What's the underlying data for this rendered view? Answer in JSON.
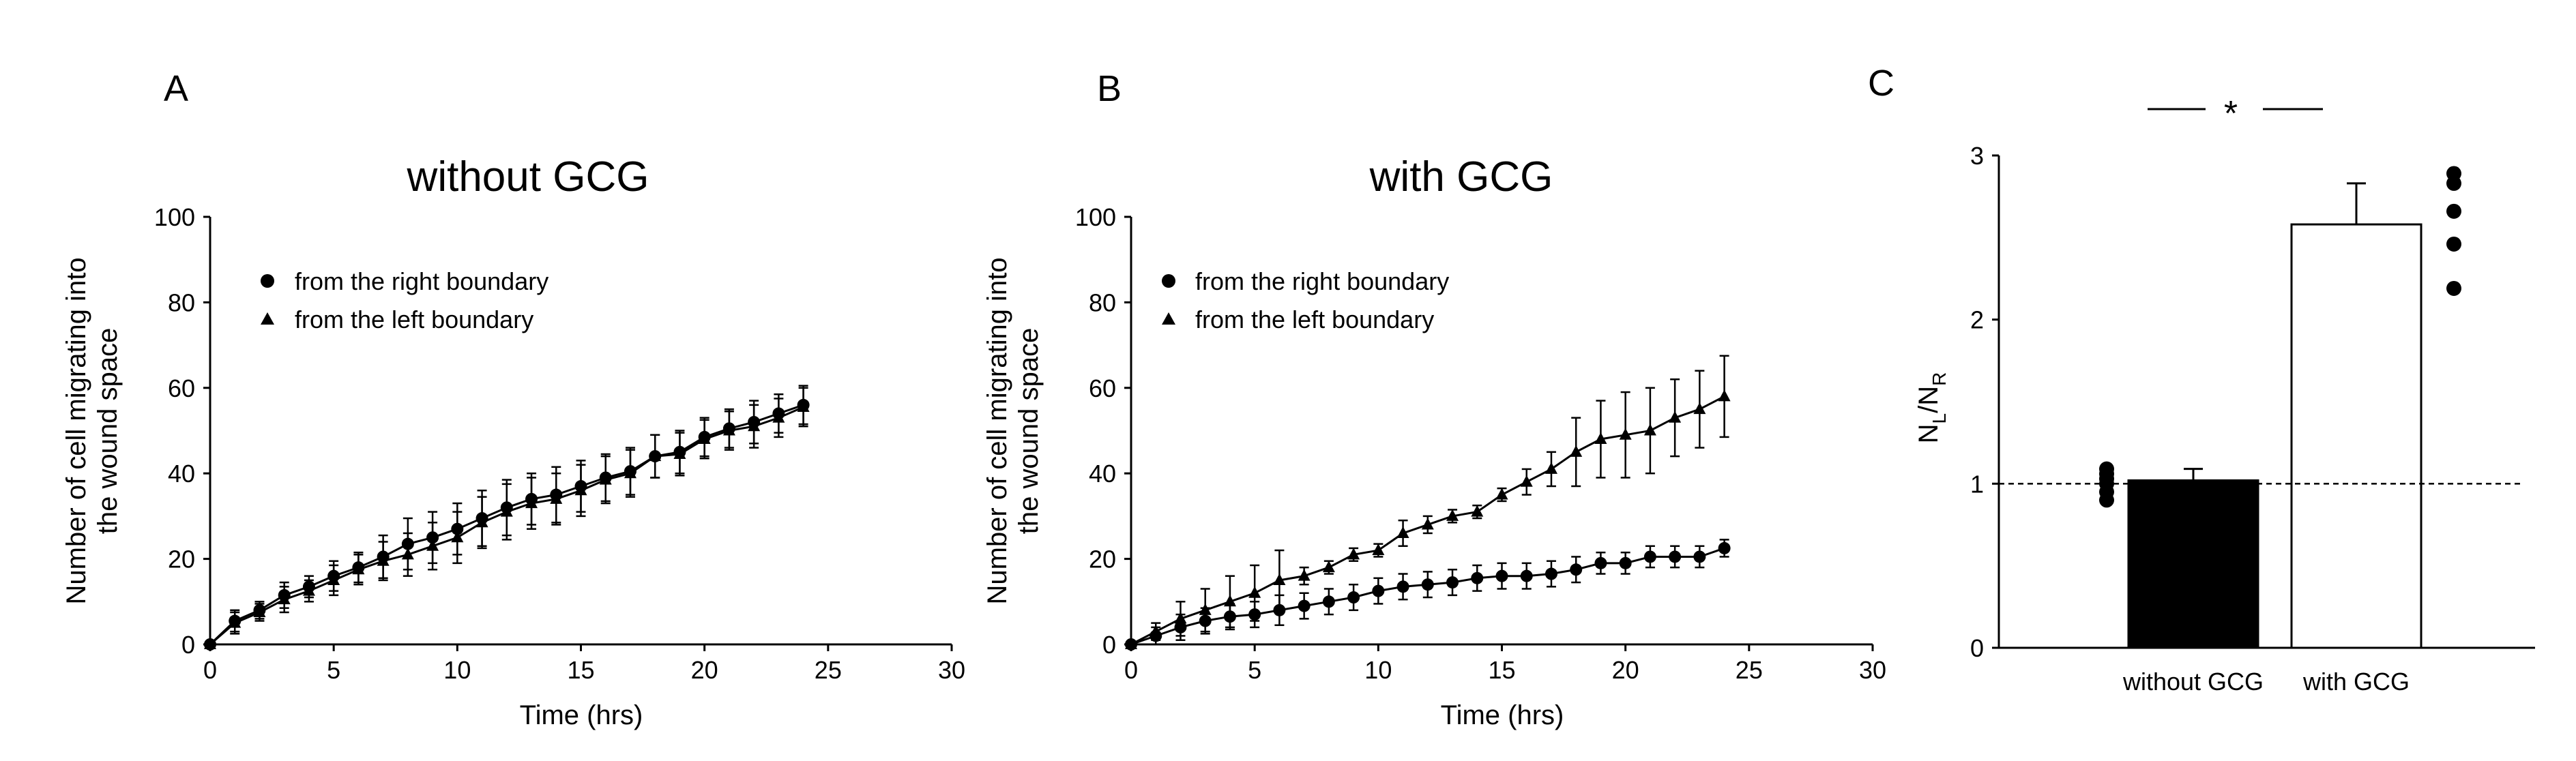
{
  "figure_labels": {
    "a": "A",
    "b": "B",
    "c": "C"
  },
  "chart_data": [
    {
      "type": "line",
      "title": "without GCG",
      "xlabel": "Time (hrs)",
      "ylabel_line1": "Number of cell migrating into",
      "ylabel_line2": "the wound space",
      "xlim": [
        0,
        30
      ],
      "ylim": [
        0,
        100
      ],
      "xticks": [
        "0",
        "5",
        "10",
        "15",
        "20",
        "25",
        "30"
      ],
      "yticks": [
        "0",
        "20",
        "40",
        "60",
        "80",
        "100"
      ],
      "x": [
        0,
        1,
        2,
        3,
        4,
        5,
        6,
        7,
        8,
        9,
        10,
        11,
        12,
        13,
        14,
        15,
        16,
        17,
        18,
        19,
        20,
        21,
        22,
        23,
        24
      ],
      "series": [
        {
          "name": "from the right boundary",
          "marker": "circle",
          "values": [
            0,
            5.5,
            8,
            11.5,
            13.5,
            16,
            18,
            20.5,
            23.5,
            25,
            27,
            29.5,
            32,
            34,
            35,
            37,
            39,
            40.5,
            44,
            45,
            48.5,
            50.5,
            52,
            54,
            56
          ],
          "errors": [
            0,
            2.5,
            2,
            3,
            2.5,
            3.5,
            3.5,
            5,
            6,
            6,
            6,
            6.5,
            6.5,
            6,
            6.5,
            6,
            5.5,
            5.5,
            5,
            5,
            4.5,
            4.5,
            5,
            4.5,
            4.5
          ]
        },
        {
          "name": "from the left boundary",
          "marker": "triangle",
          "values": [
            0,
            5,
            7.5,
            10.5,
            12.5,
            15,
            17.5,
            19.5,
            21,
            23,
            25,
            28.5,
            31,
            33,
            34,
            36,
            38.5,
            40,
            44,
            44.5,
            48,
            50,
            51,
            53,
            55.5
          ],
          "errors": [
            0,
            2.5,
            2,
            3,
            2.5,
            3.5,
            3.5,
            4.5,
            5,
            5.5,
            6,
            6,
            6.5,
            6,
            6,
            6,
            5.5,
            5.5,
            5,
            5,
            4.5,
            4.5,
            5,
            4.5,
            4.5
          ]
        }
      ]
    },
    {
      "type": "line",
      "title": "with GCG",
      "xlabel": "Time (hrs)",
      "ylabel_line1": "Number of cell migrating into",
      "ylabel_line2": "the wound space",
      "xlim": [
        0,
        30
      ],
      "ylim": [
        0,
        100
      ],
      "xticks": [
        "0",
        "5",
        "10",
        "15",
        "20",
        "25",
        "30"
      ],
      "yticks": [
        "0",
        "20",
        "40",
        "60",
        "80",
        "100"
      ],
      "x": [
        0,
        1,
        2,
        3,
        4,
        5,
        6,
        7,
        8,
        9,
        10,
        11,
        12,
        13,
        14,
        15,
        16,
        17,
        18,
        19,
        20,
        21,
        22,
        23,
        24
      ],
      "series": [
        {
          "name": "from the right boundary",
          "marker": "circle",
          "values": [
            0,
            2,
            4,
            5.5,
            6.5,
            7,
            8,
            9,
            10,
            11,
            12.5,
            13.5,
            14,
            14.5,
            15.5,
            16,
            16,
            16.5,
            17.5,
            19,
            19,
            20.5,
            20.5,
            20.5,
            22.5
          ],
          "errors": [
            0,
            2,
            3,
            3,
            3,
            3,
            3.5,
            3,
            3,
            3,
            3,
            3,
            3,
            3,
            3,
            3,
            3,
            3,
            3,
            2.5,
            2.5,
            2.5,
            2.5,
            2.5,
            2
          ]
        },
        {
          "name": "from the left boundary",
          "marker": "triangle",
          "values": [
            0,
            3,
            6,
            8,
            10,
            12,
            15,
            16,
            18,
            21,
            22,
            26,
            28,
            30,
            31,
            35,
            38,
            41,
            45,
            48,
            49,
            50,
            53,
            55,
            58
          ],
          "errors": [
            0,
            2,
            4,
            5,
            6,
            6.5,
            7,
            2,
            1.5,
            1.5,
            1.5,
            3,
            2,
            1.5,
            1.5,
            1.5,
            3,
            4,
            8,
            9,
            10,
            10,
            9,
            9,
            9.5
          ]
        }
      ]
    },
    {
      "type": "bar",
      "ylabel_main": "N",
      "ylabel_sub_l": "L",
      "ylabel_sep": "/N",
      "ylabel_sub_r": "R",
      "ylim": [
        0,
        3
      ],
      "yticks": [
        "0",
        "1",
        "2",
        "3"
      ],
      "categories": [
        "without GCG",
        "with GCG"
      ],
      "values": [
        1.02,
        2.58
      ],
      "errors": [
        0.07,
        0.25
      ],
      "bar_colors": [
        "#000000",
        "#ffffff"
      ],
      "reference_line": 1,
      "significance": "*",
      "individual_points": [
        [
          0.9,
          0.95,
          1.0,
          1.03,
          1.06,
          1.09
        ],
        [
          2.19,
          2.46,
          2.66,
          2.83,
          2.89
        ]
      ]
    }
  ]
}
